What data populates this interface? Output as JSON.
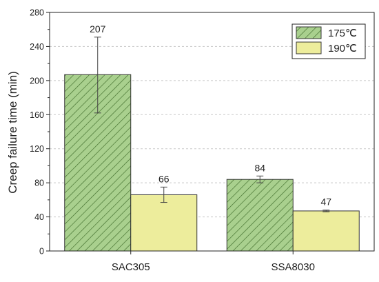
{
  "chart_data": {
    "type": "bar",
    "title": "",
    "xlabel": "",
    "ylabel": "Creep failure time (min)",
    "ylim": [
      0,
      280
    ],
    "yticks": [
      0,
      40,
      80,
      120,
      160,
      200,
      240,
      280
    ],
    "grid": "horizontal-dashed",
    "legend_position": "top-right",
    "categories": [
      "SAC305",
      "SSA8030"
    ],
    "series": [
      {
        "name": "175℃",
        "values": [
          207,
          84
        ],
        "error_low": [
          162,
          80
        ],
        "error_high": [
          251,
          88
        ],
        "labels": [
          "207",
          "84"
        ],
        "fill": "#a9d08e",
        "pattern": "diagonal-hatch",
        "hatch_color": "#3f6b2a"
      },
      {
        "name": "190℃",
        "values": [
          66,
          47
        ],
        "error_low": [
          57,
          46
        ],
        "error_high": [
          75,
          48
        ],
        "labels": [
          "66",
          "47"
        ],
        "fill": "#eded9c",
        "pattern": "solid"
      }
    ]
  }
}
